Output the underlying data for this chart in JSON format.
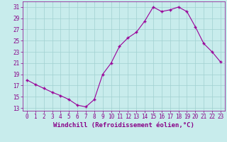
{
  "hours": [
    0,
    1,
    2,
    3,
    4,
    5,
    6,
    7,
    8,
    9,
    10,
    11,
    12,
    13,
    14,
    15,
    16,
    17,
    18,
    19,
    20,
    21,
    22,
    23
  ],
  "values": [
    18.0,
    17.2,
    16.5,
    15.8,
    15.2,
    14.5,
    13.5,
    13.2,
    14.5,
    19.0,
    21.0,
    24.0,
    25.5,
    26.5,
    28.5,
    31.0,
    30.2,
    30.5,
    31.0,
    30.2,
    27.5,
    24.5,
    23.0,
    21.2
  ],
  "line_color": "#990099",
  "marker": "+",
  "bg_color": "#c8ecec",
  "grid_color": "#a0d0d0",
  "xlabel": "Windchill (Refroidissement éolien,°C)",
  "xlim": [
    -0.5,
    23.5
  ],
  "ylim": [
    12.5,
    32
  ],
  "yticks": [
    13,
    15,
    17,
    19,
    21,
    23,
    25,
    27,
    29,
    31
  ],
  "xticks": [
    0,
    1,
    2,
    3,
    4,
    5,
    6,
    7,
    8,
    9,
    10,
    11,
    12,
    13,
    14,
    15,
    16,
    17,
    18,
    19,
    20,
    21,
    22,
    23
  ],
  "font_color": "#880088",
  "tick_fontsize": 5.5,
  "xlabel_fontsize": 6.5,
  "marker_size": 3,
  "line_width": 0.8
}
